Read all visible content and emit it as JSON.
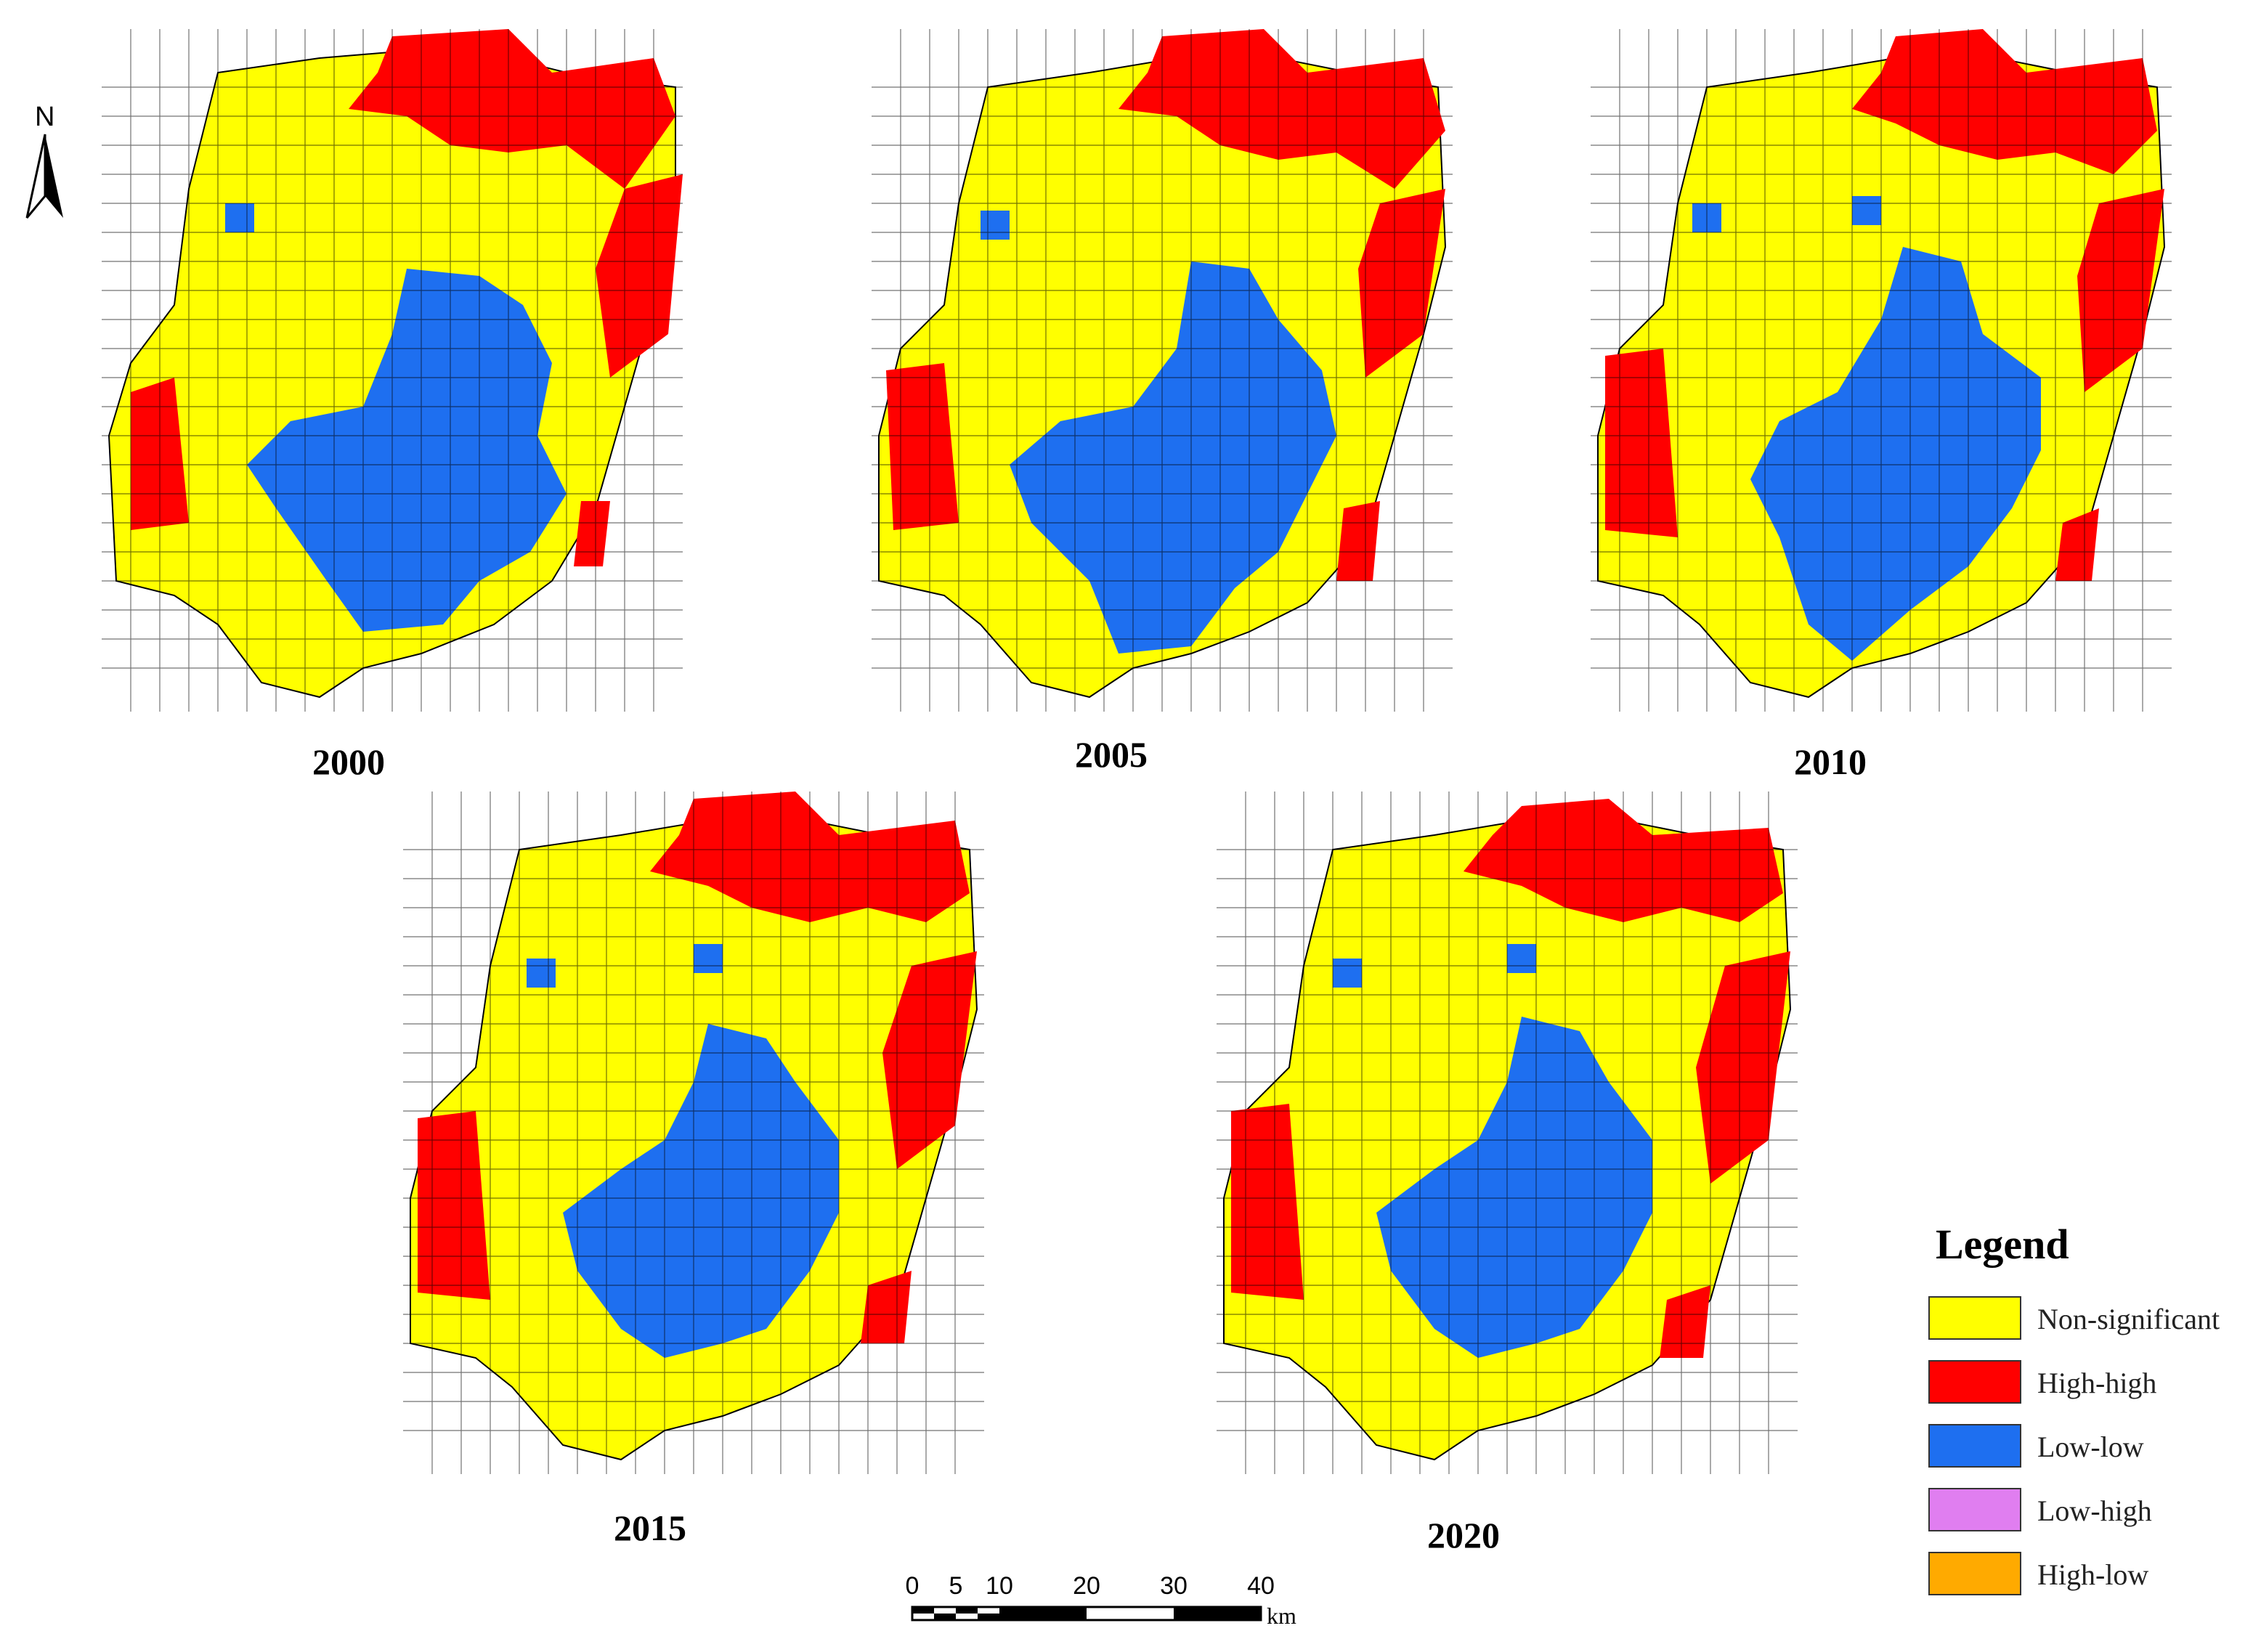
{
  "north_arrow": {
    "label": "N"
  },
  "panels": [
    {
      "year": "2000"
    },
    {
      "year": "2005"
    },
    {
      "year": "2010"
    },
    {
      "year": "2015"
    },
    {
      "year": "2020"
    }
  ],
  "legend": {
    "title": "Legend",
    "items": [
      {
        "label": "Non-significant",
        "color": "#ffff00"
      },
      {
        "label": "High-high",
        "color": "#ff0000"
      },
      {
        "label": "Low-low",
        "color": "#1e6ff0"
      },
      {
        "label": "Low-high",
        "color": "#e07ef0"
      },
      {
        "label": "High-low",
        "color": "#ffaa00"
      }
    ]
  },
  "scale_bar": {
    "ticks": [
      "0",
      "5",
      "10",
      "20",
      "30",
      "40"
    ],
    "unit": "km"
  }
}
